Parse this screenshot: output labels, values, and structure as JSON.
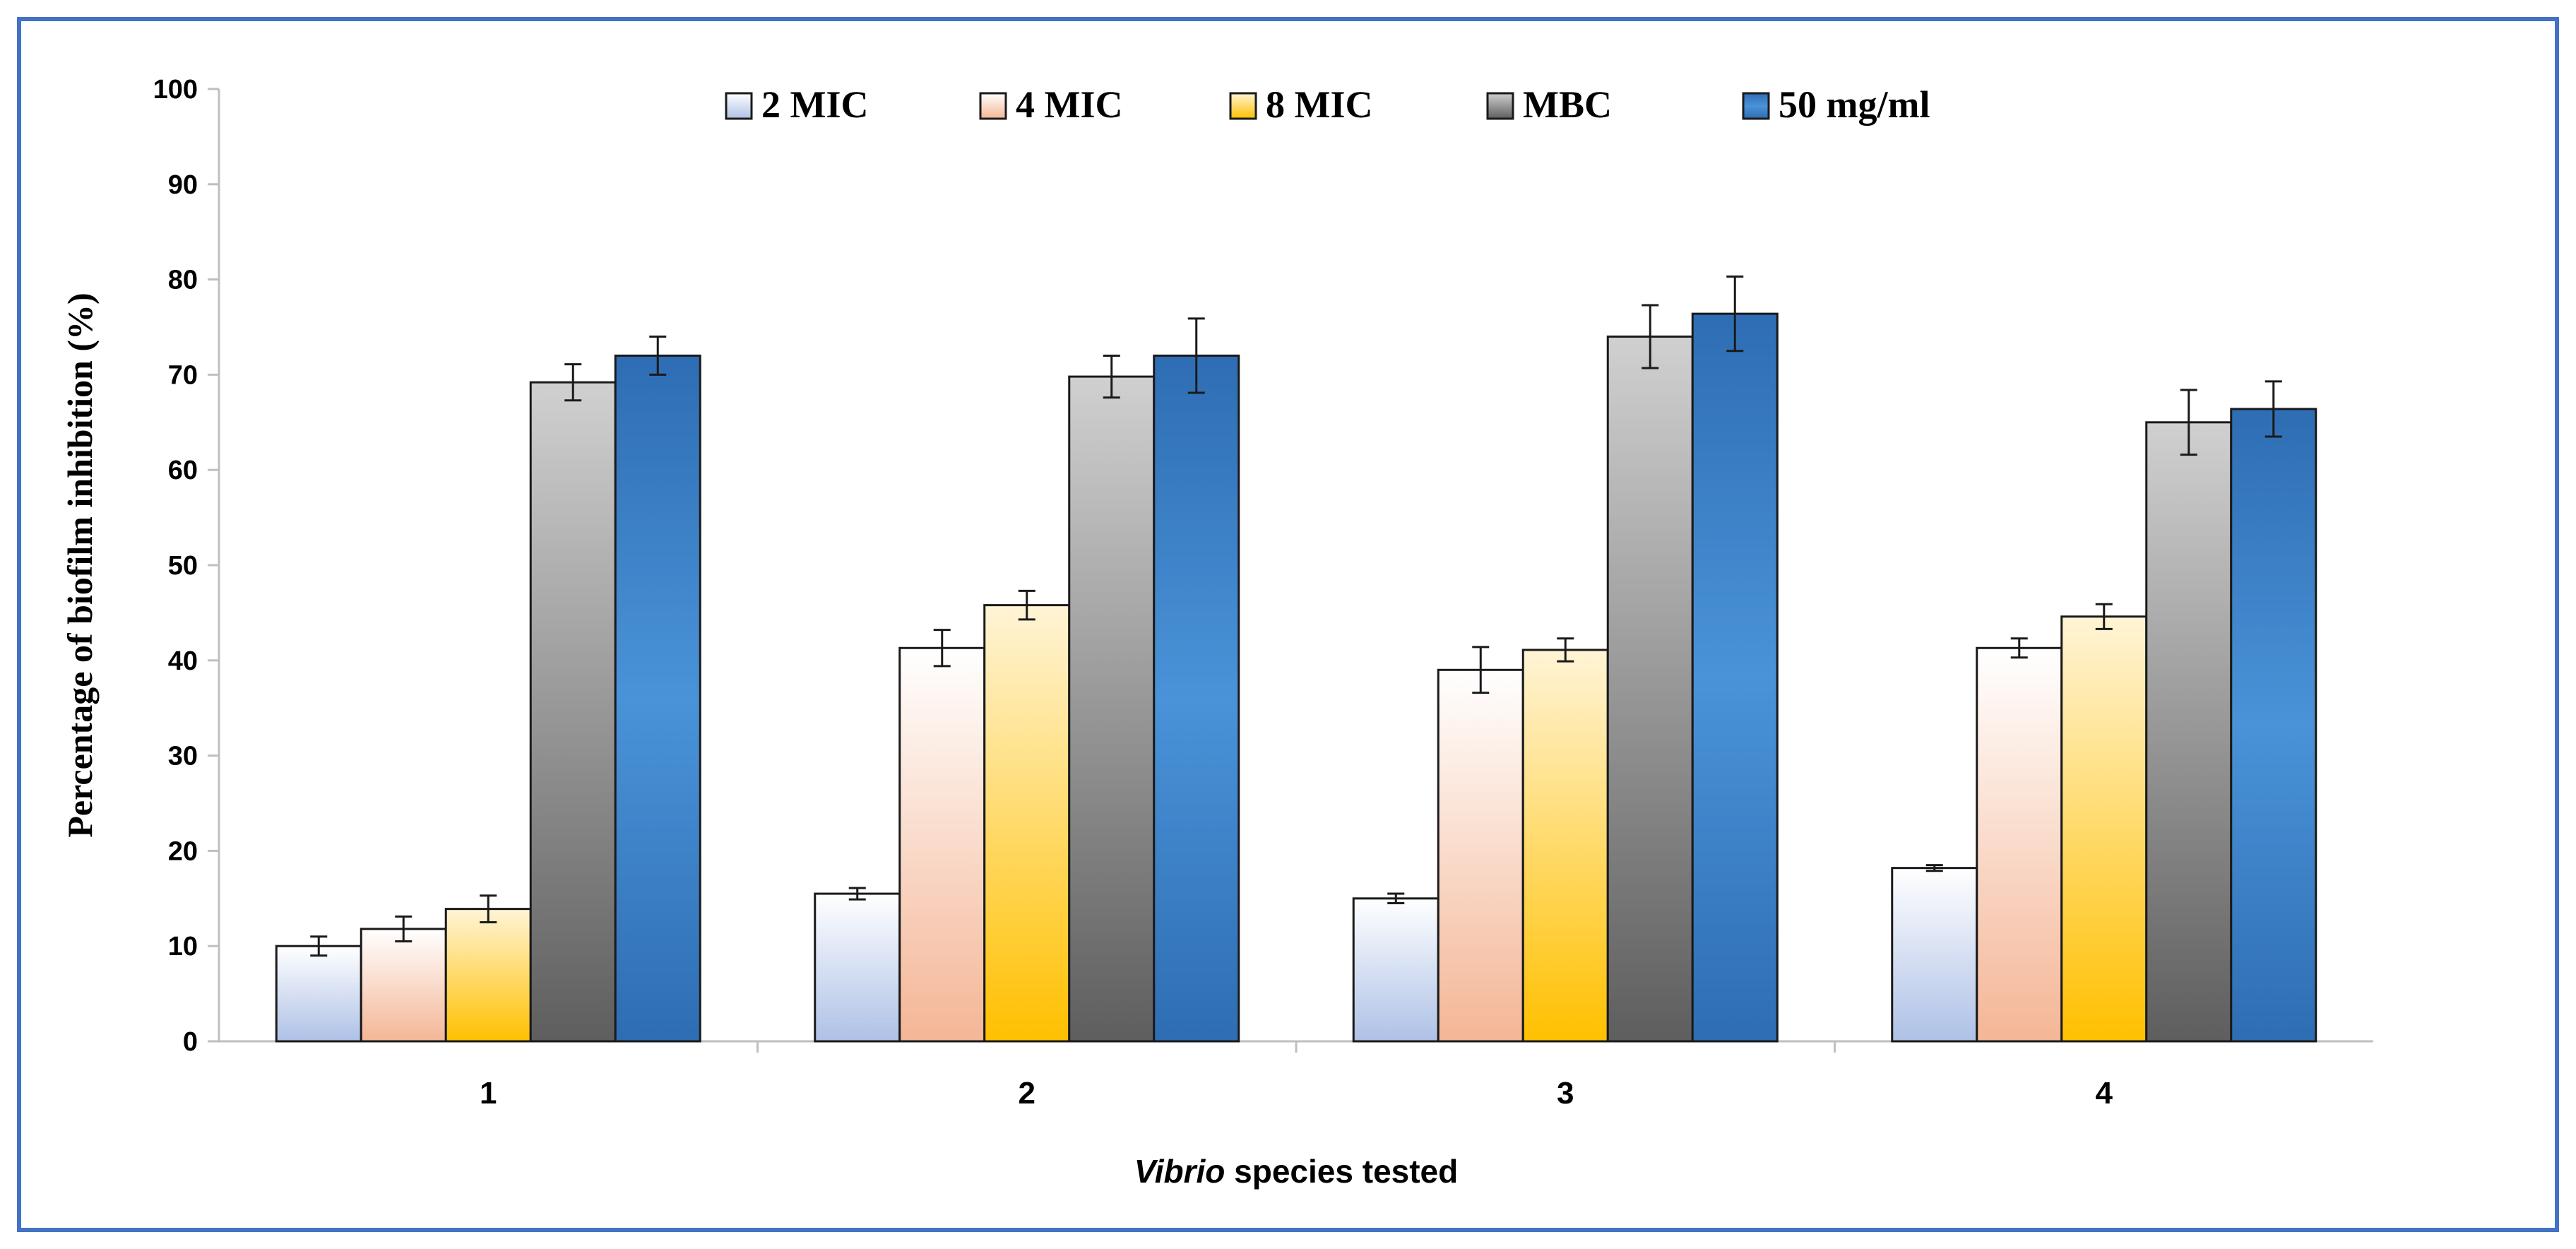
{
  "chart_data": {
    "type": "bar",
    "title": "",
    "xlabel_italic": "Vibrio",
    "xlabel_rest": " species tested",
    "ylabel": "Percentage of biofilm inhibition (%)",
    "ylim": [
      0,
      100
    ],
    "yticks": [
      0,
      10,
      20,
      30,
      40,
      50,
      60,
      70,
      80,
      90,
      100
    ],
    "categories": [
      "1",
      "2",
      "3",
      "4"
    ],
    "legend_position": "top",
    "series": [
      {
        "name": "2 MIC",
        "values": [
          10.0,
          15.5,
          15.0,
          18.2
        ],
        "errors": [
          1.0,
          0.6,
          0.5,
          0.3
        ],
        "color_top": "#ffffff",
        "color_bottom": "#aec1e6"
      },
      {
        "name": "4 MIC",
        "values": [
          11.8,
          41.3,
          39.0,
          41.3
        ],
        "errors": [
          1.3,
          1.9,
          2.4,
          1.0
        ],
        "color_top": "#ffffff",
        "color_bottom": "#f4b696"
      },
      {
        "name": "8 MIC",
        "values": [
          13.9,
          45.8,
          41.1,
          44.6
        ],
        "errors": [
          1.4,
          1.5,
          1.2,
          1.3
        ],
        "color_top": "#fff4d6",
        "color_bottom": "#ffc000"
      },
      {
        "name": "MBC",
        "values": [
          69.2,
          69.8,
          74.0,
          65.0
        ],
        "errors": [
          1.9,
          2.2,
          3.3,
          3.4
        ],
        "color_top": "#d0d0d0",
        "color_bottom": "#5e5e5e"
      },
      {
        "name": "50 mg/ml",
        "values": [
          72.0,
          72.0,
          76.4,
          66.4
        ],
        "errors": [
          2.0,
          3.9,
          3.9,
          2.9
        ],
        "color_top": "#2e6db4",
        "color_bottom": "#2e6db4",
        "color_mid": "#4a93d8"
      }
    ]
  }
}
